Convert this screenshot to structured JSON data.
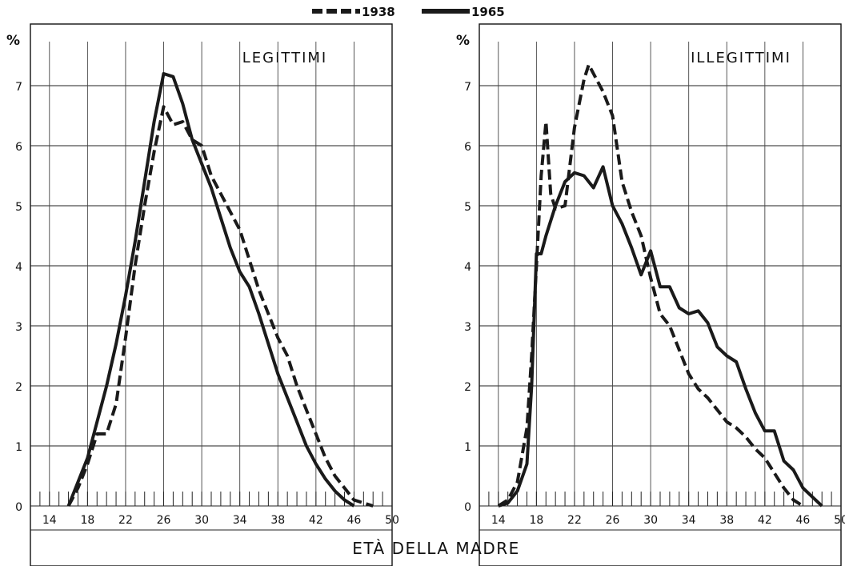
{
  "legend": [
    {
      "label": "1938",
      "style": "dashed"
    },
    {
      "label": "1965",
      "style": "solid"
    }
  ],
  "x_axis_title": "ETÀ DELLA MADRE",
  "chart_data": [
    {
      "type": "line",
      "title": "LEGITTIMI",
      "y_unit": "%",
      "xlim": [
        12,
        50
      ],
      "ylim": [
        0,
        8
      ],
      "x_ticks": [
        14,
        18,
        22,
        26,
        30,
        34,
        38,
        42,
        46,
        50
      ],
      "y_ticks": [
        0,
        1,
        2,
        3,
        4,
        5,
        6,
        7
      ],
      "grid": true,
      "series": [
        {
          "name": "1938",
          "style": "dashed",
          "x": [
            16,
            17,
            18,
            19,
            20,
            21,
            22,
            23,
            24,
            25,
            26,
            27,
            28,
            29,
            30,
            31,
            32,
            33,
            34,
            35,
            36,
            37,
            38,
            39,
            40,
            41,
            42,
            43,
            44,
            45,
            46,
            47,
            48
          ],
          "y": [
            0.0,
            0.3,
            0.7,
            1.2,
            1.2,
            1.7,
            2.8,
            4.0,
            5.0,
            5.9,
            6.65,
            6.35,
            6.4,
            6.1,
            6.0,
            5.5,
            5.2,
            4.9,
            4.6,
            4.1,
            3.6,
            3.2,
            2.8,
            2.5,
            2.0,
            1.6,
            1.2,
            0.8,
            0.5,
            0.3,
            0.1,
            0.05,
            0.0
          ]
        },
        {
          "name": "1965",
          "style": "solid",
          "x": [
            16,
            17,
            18,
            19,
            20,
            21,
            22,
            23,
            24,
            25,
            26,
            27,
            28,
            29,
            30,
            31,
            32,
            33,
            34,
            35,
            36,
            37,
            38,
            39,
            40,
            41,
            42,
            43,
            44,
            45,
            46
          ],
          "y": [
            0.0,
            0.4,
            0.8,
            1.4,
            2.0,
            2.7,
            3.5,
            4.4,
            5.4,
            6.4,
            7.2,
            7.15,
            6.7,
            6.1,
            5.7,
            5.3,
            4.8,
            4.3,
            3.9,
            3.65,
            3.2,
            2.7,
            2.2,
            1.8,
            1.4,
            1.0,
            0.7,
            0.45,
            0.25,
            0.1,
            0.0
          ]
        }
      ]
    },
    {
      "type": "line",
      "title": "ILLEGITTIMI",
      "y_unit": "%",
      "xlim": [
        12,
        50
      ],
      "ylim": [
        0,
        8
      ],
      "x_ticks": [
        14,
        18,
        22,
        26,
        30,
        34,
        38,
        42,
        46,
        50
      ],
      "y_ticks": [
        0,
        1,
        2,
        3,
        4,
        5,
        6,
        7
      ],
      "grid": true,
      "series": [
        {
          "name": "1938",
          "style": "dashed",
          "x": [
            14,
            15,
            16,
            17,
            17.5,
            18,
            18.5,
            19,
            19.5,
            20,
            21,
            22,
            23,
            23.5,
            24,
            25,
            26,
            27,
            28,
            29,
            30,
            31,
            32,
            33,
            34,
            35,
            36,
            37,
            38,
            39,
            40,
            41,
            42,
            43,
            44,
            45,
            46
          ],
          "y": [
            0.0,
            0.1,
            0.4,
            1.3,
            2.5,
            4.0,
            5.5,
            6.4,
            5.2,
            4.95,
            5.0,
            6.3,
            7.1,
            7.35,
            7.2,
            6.9,
            6.5,
            5.4,
            4.9,
            4.5,
            3.8,
            3.2,
            3.0,
            2.6,
            2.2,
            1.95,
            1.8,
            1.6,
            1.4,
            1.3,
            1.15,
            0.95,
            0.8,
            0.55,
            0.3,
            0.1,
            0.0
          ]
        },
        {
          "name": "1965",
          "style": "solid",
          "x": [
            14,
            15,
            16,
            17,
            17.5,
            18,
            18.5,
            19,
            20,
            21,
            22,
            23,
            24,
            25,
            26,
            27,
            28,
            29,
            30,
            31,
            32,
            33,
            34,
            35,
            36,
            37,
            38,
            39,
            40,
            41,
            42,
            43,
            44,
            45,
            46,
            47,
            48
          ],
          "y": [
            0.0,
            0.05,
            0.25,
            0.7,
            2.0,
            4.2,
            4.2,
            4.5,
            5.0,
            5.4,
            5.55,
            5.5,
            5.3,
            5.65,
            5.0,
            4.7,
            4.3,
            3.85,
            4.25,
            3.65,
            3.65,
            3.3,
            3.2,
            3.25,
            3.05,
            2.65,
            2.5,
            2.4,
            1.95,
            1.55,
            1.25,
            1.25,
            0.75,
            0.6,
            0.3,
            0.15,
            0.0
          ]
        }
      ]
    }
  ]
}
